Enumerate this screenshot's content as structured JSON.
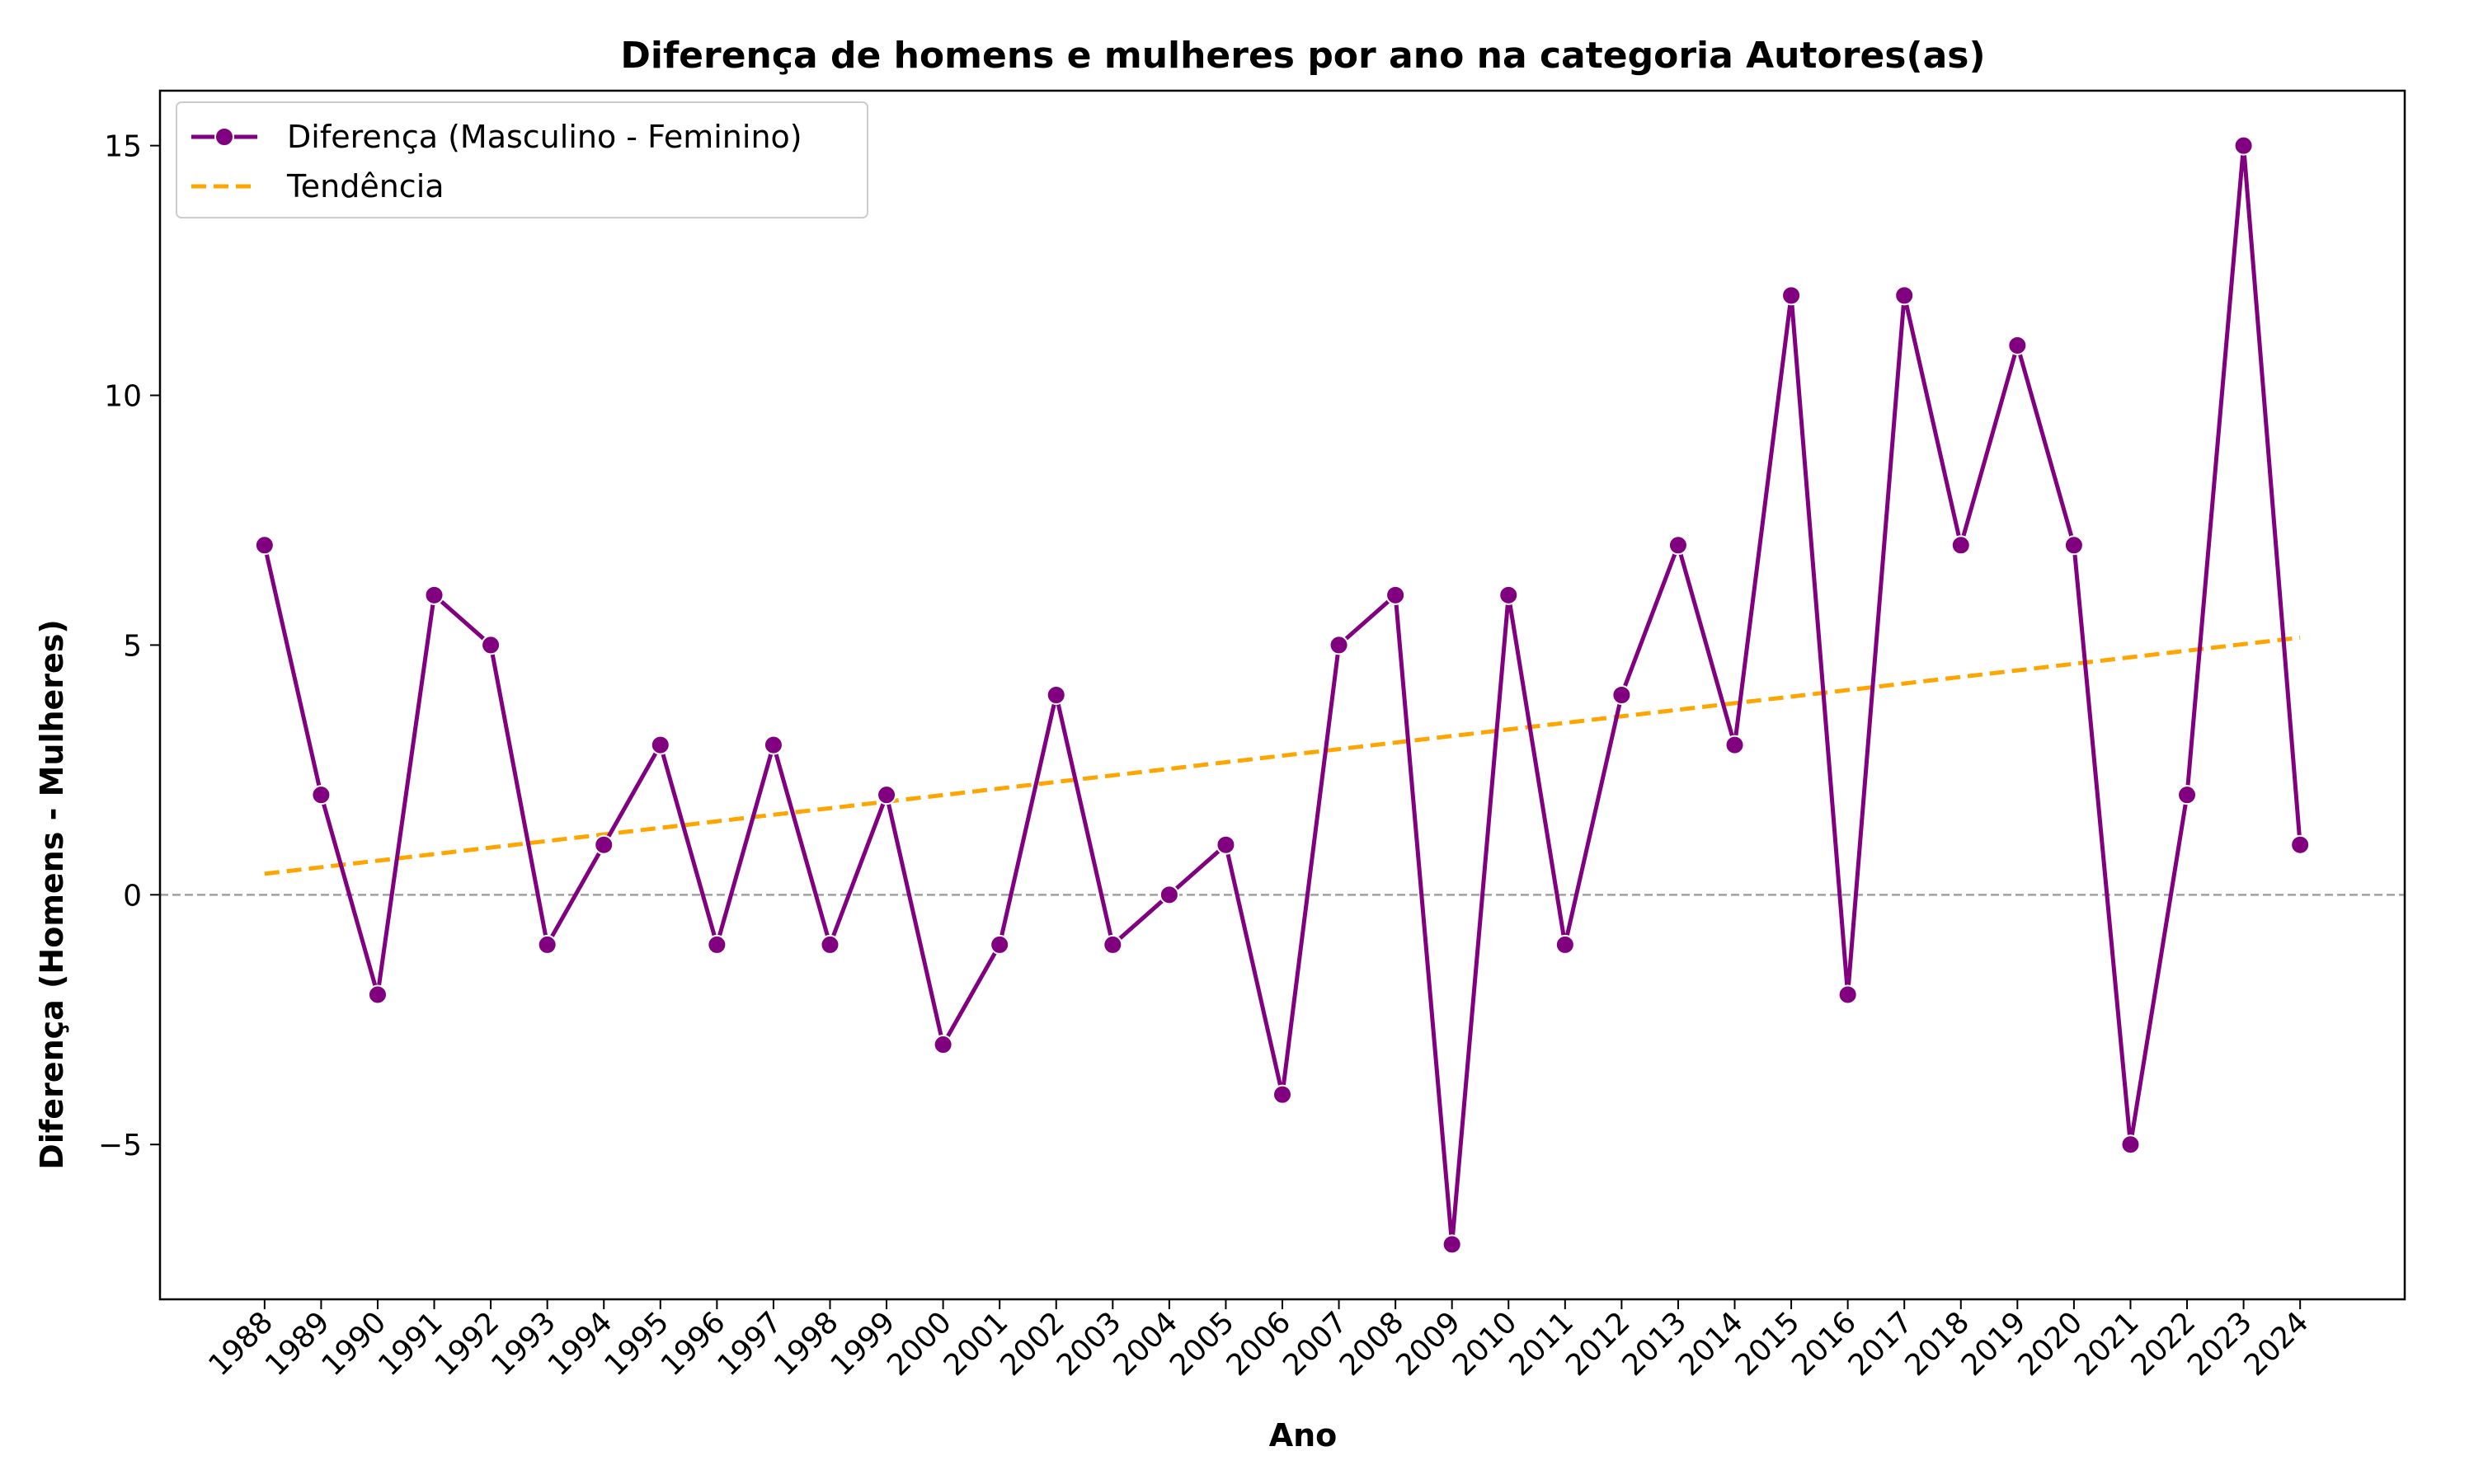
{
  "chart_data": {
    "type": "line",
    "title": "Diferença de homens e mulheres por ano na categoria Autores(as)",
    "xlabel": "Ano",
    "ylabel": "Diferença (Homens - Mulheres)",
    "x": [
      "1988",
      "1989",
      "1990",
      "1991",
      "1992",
      "1993",
      "1994",
      "1995",
      "1996",
      "1997",
      "1998",
      "1999",
      "2000",
      "2001",
      "2002",
      "2003",
      "2004",
      "2005",
      "2006",
      "2007",
      "2008",
      "2009",
      "2010",
      "2011",
      "2012",
      "2013",
      "2014",
      "2015",
      "2016",
      "2017",
      "2018",
      "2019",
      "2020",
      "2021",
      "2022",
      "2023",
      "2024"
    ],
    "series": [
      {
        "name": "Diferença (Masculino - Feminino)",
        "color": "#800080",
        "style": "solid",
        "marker": "circle",
        "values": [
          7,
          2,
          -2,
          6,
          5,
          -1,
          1,
          3,
          -1,
          3,
          -1,
          2,
          -3,
          -1,
          4,
          -1,
          0,
          1,
          -4,
          5,
          6,
          -7,
          6,
          -1,
          4,
          7,
          3,
          12,
          -2,
          12,
          7,
          11,
          7,
          -5,
          2,
          15,
          1
        ]
      },
      {
        "name": "Tendência",
        "color": "#FFA500",
        "style": "dashed",
        "marker": "none",
        "start": 0.42,
        "end": 5.15
      }
    ],
    "ylim": [
      -8.1,
      16.1
    ],
    "yticks": [
      -5,
      0,
      5,
      10,
      15
    ],
    "ytick_labels": [
      "−5",
      "0",
      "5",
      "10",
      "15"
    ],
    "reference_line": {
      "y": 0,
      "color": "#a0a0a0",
      "style": "dashed"
    },
    "grid": false,
    "legend_position": "top-left"
  }
}
